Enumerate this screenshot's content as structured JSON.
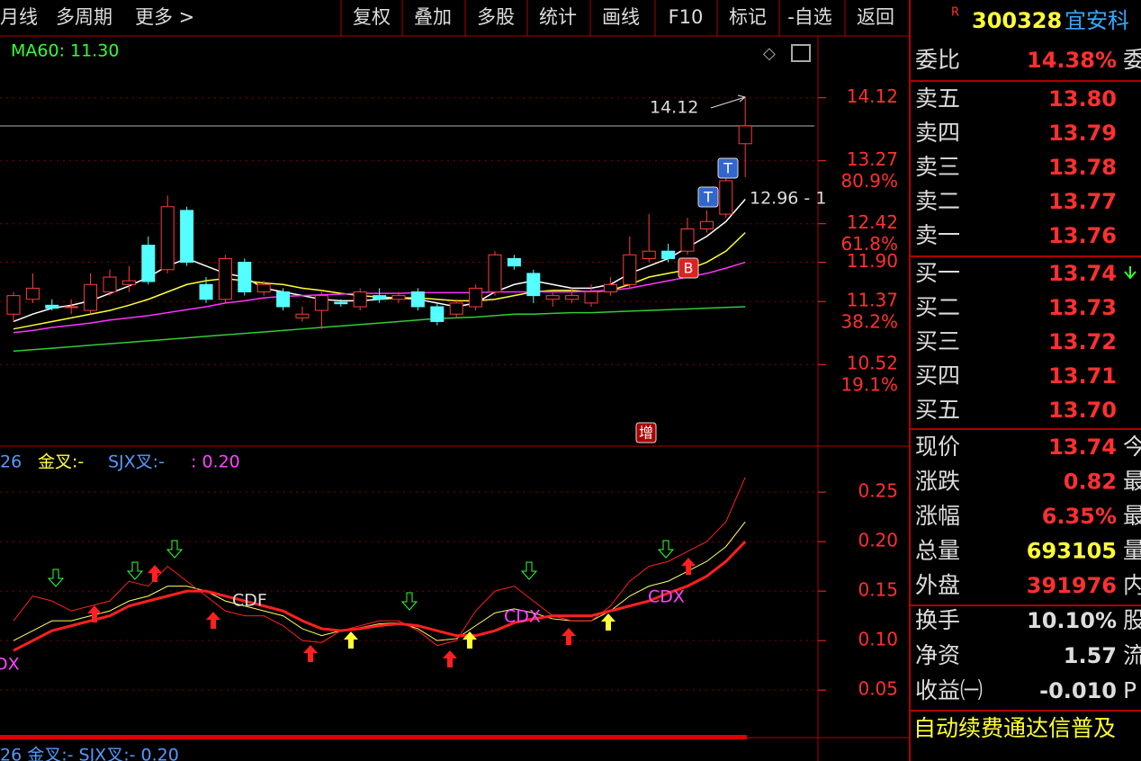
{
  "toolbar": {
    "left": [
      "月线",
      "多周期",
      "更多 >"
    ],
    "buttons": [
      "复权",
      "叠加",
      "多股",
      "统计",
      "画线",
      "F10",
      "标记",
      "-自选",
      "返回"
    ]
  },
  "stock": {
    "flag": "R",
    "code": "300328",
    "name": "宜安科"
  },
  "price_chart": {
    "ma_label": "MA60: 11.30",
    "ylim": [
      9.43,
      14.93
    ],
    "yticks": [
      {
        "value": 14.12,
        "label": "14.12"
      },
      {
        "value": 13.27,
        "label": "13.27",
        "ratio": "80.9%"
      },
      {
        "value": 12.42,
        "label": "12.42",
        "ratio": "61.8%"
      },
      {
        "value": 11.9,
        "label": "11.90"
      },
      {
        "value": 11.37,
        "label": "11.37",
        "ratio": "38.2%"
      },
      {
        "value": 10.52,
        "label": "10.52",
        "ratio": "19.1%"
      }
    ],
    "candles": [
      [
        11.2,
        11.45,
        11.5,
        11.1
      ],
      [
        11.4,
        11.55,
        11.75,
        11.35
      ],
      [
        11.32,
        11.28,
        11.4,
        11.25
      ],
      [
        11.3,
        11.3,
        11.4,
        11.2
      ],
      [
        11.25,
        11.6,
        11.75,
        11.2
      ],
      [
        11.5,
        11.7,
        11.8,
        11.45
      ],
      [
        11.6,
        11.65,
        11.85,
        11.5
      ],
      [
        12.13,
        11.64,
        12.25,
        11.6
      ],
      [
        11.8,
        12.65,
        12.8,
        11.75
      ],
      [
        12.6,
        11.9,
        12.65,
        11.85
      ],
      [
        11.6,
        11.4,
        11.7,
        11.35
      ],
      [
        11.4,
        11.95,
        12.0,
        11.35
      ],
      [
        11.9,
        11.5,
        11.95,
        11.45
      ],
      [
        11.5,
        11.6,
        11.65,
        11.45
      ],
      [
        11.5,
        11.3,
        11.55,
        11.25
      ],
      [
        11.15,
        11.2,
        11.3,
        11.1
      ],
      [
        11.25,
        11.45,
        11.5,
        11.0
      ],
      [
        11.36,
        11.34,
        11.4,
        11.3
      ],
      [
        11.3,
        11.5,
        11.55,
        11.25
      ],
      [
        11.45,
        11.4,
        11.55,
        11.35
      ],
      [
        11.4,
        11.45,
        11.5,
        11.35
      ],
      [
        11.5,
        11.3,
        11.55,
        11.25
      ],
      [
        11.3,
        11.1,
        11.35,
        11.05
      ],
      [
        11.2,
        11.35,
        11.4,
        11.15
      ],
      [
        11.3,
        11.55,
        11.6,
        11.25
      ],
      [
        11.5,
        12.0,
        12.05,
        11.45
      ],
      [
        11.95,
        11.85,
        12.0,
        11.8
      ],
      [
        11.75,
        11.45,
        11.8,
        11.35
      ],
      [
        11.4,
        11.45,
        11.5,
        11.3
      ],
      [
        11.4,
        11.45,
        11.55,
        11.35
      ],
      [
        11.35,
        11.5,
        11.6,
        11.3
      ],
      [
        11.5,
        11.6,
        11.7,
        11.45
      ],
      [
        11.6,
        12.0,
        12.25,
        11.55
      ],
      [
        11.95,
        12.05,
        12.55,
        11.9
      ],
      [
        12.05,
        11.95,
        12.15,
        11.9
      ],
      [
        12.05,
        12.35,
        12.5,
        12.0
      ],
      [
        12.35,
        12.45,
        12.6,
        12.3
      ],
      [
        12.55,
        13.0,
        13.05,
        12.5
      ],
      [
        13.5,
        13.74,
        14.12,
        13.05
      ]
    ],
    "ma": [
      {
        "color": "#ffffff",
        "values": [
          11.1,
          11.2,
          11.28,
          11.32,
          11.38,
          11.48,
          11.58,
          11.7,
          11.85,
          11.95,
          11.85,
          11.75,
          11.7,
          11.55,
          11.5,
          11.45,
          11.4,
          11.38,
          11.38,
          11.4,
          11.42,
          11.4,
          11.35,
          11.3,
          11.35,
          11.5,
          11.6,
          11.65,
          11.6,
          11.55,
          11.55,
          11.6,
          11.75,
          11.85,
          11.95,
          12.1,
          12.25,
          12.45,
          12.75
        ]
      },
      {
        "color": "#ffff33",
        "values": [
          11.0,
          11.05,
          11.1,
          11.15,
          11.2,
          11.25,
          11.32,
          11.4,
          11.5,
          11.6,
          11.65,
          11.68,
          11.65,
          11.62,
          11.6,
          11.55,
          11.52,
          11.48,
          11.45,
          11.43,
          11.42,
          11.42,
          11.4,
          11.38,
          11.38,
          11.4,
          11.45,
          11.5,
          11.52,
          11.52,
          11.5,
          11.52,
          11.6,
          11.7,
          11.75,
          11.8,
          11.9,
          12.05,
          12.3
        ]
      },
      {
        "color": "#ff33ff",
        "values": [
          10.95,
          10.98,
          11.02,
          11.05,
          11.08,
          11.12,
          11.15,
          11.18,
          11.22,
          11.26,
          11.3,
          11.35,
          11.38,
          11.42,
          11.44,
          11.45,
          11.46,
          11.47,
          11.48,
          11.48,
          11.48,
          11.49,
          11.49,
          11.49,
          11.49,
          11.5,
          11.5,
          11.5,
          11.5,
          11.5,
          11.51,
          11.52,
          11.55,
          11.6,
          11.65,
          11.7,
          11.75,
          11.82,
          11.9
        ]
      },
      {
        "color": "#33cc33",
        "values": [
          10.7,
          10.72,
          10.74,
          10.76,
          10.78,
          10.8,
          10.82,
          10.84,
          10.86,
          10.88,
          10.9,
          10.92,
          10.94,
          10.96,
          10.98,
          11.0,
          11.02,
          11.04,
          11.06,
          11.08,
          11.1,
          11.12,
          11.14,
          11.15,
          11.16,
          11.18,
          11.2,
          11.2,
          11.21,
          11.22,
          11.22,
          11.23,
          11.24,
          11.25,
          11.26,
          11.27,
          11.28,
          11.29,
          11.3
        ]
      }
    ],
    "high_label": "14.12",
    "low_label": "12.96 - 1",
    "markers": [
      "T",
      "T",
      "B",
      "增"
    ]
  },
  "indicator": {
    "header": [
      "26",
      "金叉:-",
      "SJX叉:-",
      ": 0.20"
    ],
    "signals": [
      "CDF",
      "CDX",
      "CDX",
      "DX"
    ],
    "ylim": [
      0.002,
      0.2955
    ],
    "yticks": [
      {
        "value": 0.25,
        "label": "0.25"
      },
      {
        "value": 0.2,
        "label": "0.20"
      },
      {
        "value": 0.15,
        "label": "0.15"
      },
      {
        "value": 0.1,
        "label": "0.10"
      },
      {
        "value": 0.05,
        "label": "0.05"
      }
    ],
    "series": [
      {
        "color": "#ff2020",
        "width": 3,
        "values": [
          0.09,
          0.1,
          0.11,
          0.115,
          0.12,
          0.125,
          0.135,
          0.14,
          0.145,
          0.15,
          0.15,
          0.145,
          0.14,
          0.135,
          0.13,
          0.12,
          0.112,
          0.11,
          0.112,
          0.115,
          0.117,
          0.115,
          0.11,
          0.105,
          0.105,
          0.11,
          0.118,
          0.122,
          0.125,
          0.125,
          0.125,
          0.13,
          0.135,
          0.14,
          0.148,
          0.155,
          0.165,
          0.18,
          0.2
        ]
      },
      {
        "color": "#ff2020",
        "width": 1,
        "values": [
          0.12,
          0.145,
          0.14,
          0.13,
          0.135,
          0.14,
          0.16,
          0.155,
          0.175,
          0.16,
          0.145,
          0.13,
          0.125,
          0.125,
          0.115,
          0.1,
          0.098,
          0.11,
          0.115,
          0.12,
          0.12,
          0.11,
          0.095,
          0.1,
          0.13,
          0.15,
          0.155,
          0.14,
          0.125,
          0.12,
          0.12,
          0.135,
          0.16,
          0.175,
          0.18,
          0.19,
          0.2,
          0.22,
          0.265
        ]
      },
      {
        "color": "#ffff66",
        "width": 1,
        "values": [
          0.1,
          0.11,
          0.12,
          0.12,
          0.125,
          0.13,
          0.14,
          0.145,
          0.155,
          0.155,
          0.15,
          0.14,
          0.135,
          0.13,
          0.125,
          0.112,
          0.105,
          0.11,
          0.113,
          0.117,
          0.118,
          0.112,
          0.1,
          0.102,
          0.115,
          0.128,
          0.132,
          0.128,
          0.122,
          0.12,
          0.12,
          0.13,
          0.145,
          0.155,
          0.16,
          0.17,
          0.18,
          0.195,
          0.22
        ]
      }
    ],
    "footer": "26 金叉:- SJX叉:- 0.20"
  },
  "quote": {
    "ratio": {
      "label": "委比",
      "value": "14.38%",
      "tail": "委"
    },
    "asks": [
      {
        "label": "卖五",
        "price": "13.80"
      },
      {
        "label": "卖四",
        "price": "13.79"
      },
      {
        "label": "卖三",
        "price": "13.78"
      },
      {
        "label": "卖二",
        "price": "13.77"
      },
      {
        "label": "卖一",
        "price": "13.76"
      }
    ],
    "bids": [
      {
        "label": "买一",
        "price": "13.74"
      },
      {
        "label": "买二",
        "price": "13.73"
      },
      {
        "label": "买三",
        "price": "13.72"
      },
      {
        "label": "买四",
        "price": "13.71"
      },
      {
        "label": "买五",
        "price": "13.70"
      }
    ],
    "stats": [
      {
        "label": "现价",
        "value": "13.74",
        "tail": "今"
      },
      {
        "label": "涨跌",
        "value": "0.82",
        "tail": "最"
      },
      {
        "label": "涨幅",
        "value": "6.35%",
        "tail": "最"
      },
      {
        "label": "总量",
        "value": "693105",
        "tail": "量"
      },
      {
        "label": "外盘",
        "value": "391976",
        "tail": "内"
      }
    ],
    "finance": [
      {
        "label": "换手",
        "value": "10.10%",
        "tail": "股"
      },
      {
        "label": "净资",
        "value": "1.57",
        "tail": "流"
      },
      {
        "label": "收益㈠",
        "value": "-0.010",
        "tail": "P"
      }
    ],
    "ticker": "自动续费通达信普及"
  }
}
